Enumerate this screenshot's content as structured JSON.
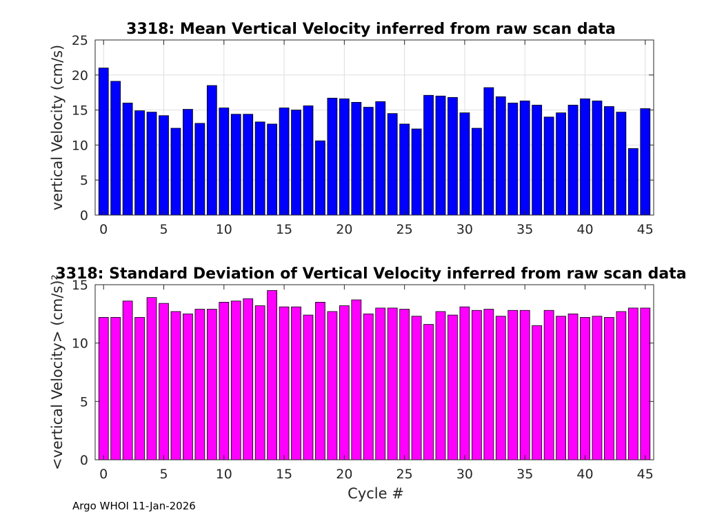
{
  "chart_data": [
    {
      "type": "bar",
      "title": "3318: Mean Vertical Velocity inferred from raw scan data",
      "xlabel": "",
      "ylabel": "vertical Velocity (cm/s)",
      "x": [
        0,
        1,
        2,
        3,
        4,
        5,
        6,
        7,
        8,
        9,
        10,
        11,
        12,
        13,
        14,
        15,
        16,
        17,
        18,
        19,
        20,
        21,
        22,
        23,
        24,
        25,
        26,
        27,
        28,
        29,
        30,
        31,
        32,
        33,
        34,
        35,
        36,
        37,
        38,
        39,
        40,
        41,
        42,
        43,
        44,
        45
      ],
      "values": [
        21.0,
        19.1,
        16.0,
        14.9,
        14.7,
        14.2,
        12.4,
        15.1,
        13.1,
        18.5,
        15.3,
        14.4,
        14.4,
        13.3,
        13.0,
        15.3,
        15.0,
        15.6,
        10.6,
        16.7,
        16.6,
        16.1,
        15.4,
        16.2,
        14.5,
        13.0,
        12.3,
        17.1,
        17.0,
        16.8,
        14.6,
        12.4,
        18.2,
        16.9,
        16.0,
        16.3,
        15.7,
        14.0,
        14.6,
        15.7,
        16.6,
        16.3,
        15.5,
        14.7,
        9.5,
        15.2
      ],
      "xlim": [
        -0.7,
        45.7
      ],
      "ylim": [
        0,
        25
      ],
      "xticks": [
        0,
        5,
        10,
        15,
        20,
        25,
        30,
        35,
        40,
        45
      ],
      "yticks": [
        0,
        5,
        10,
        15,
        20,
        25
      ],
      "grid": true,
      "color": "#0000ff"
    },
    {
      "type": "bar",
      "title": "3318: Standard Deviation of Vertical Velocity inferred from raw scan data",
      "xlabel": "Cycle #",
      "ylabel": "<vertical Velocity> (cm/s)²",
      "x": [
        0,
        1,
        2,
        3,
        4,
        5,
        6,
        7,
        8,
        9,
        10,
        11,
        12,
        13,
        14,
        15,
        16,
        17,
        18,
        19,
        20,
        21,
        22,
        23,
        24,
        25,
        26,
        27,
        28,
        29,
        30,
        31,
        32,
        33,
        34,
        35,
        36,
        37,
        38,
        39,
        40,
        41,
        42,
        43,
        44,
        45
      ],
      "values": [
        12.2,
        12.2,
        13.6,
        12.2,
        13.9,
        13.4,
        12.7,
        12.5,
        12.9,
        12.9,
        13.5,
        13.6,
        13.8,
        13.2,
        14.5,
        13.1,
        13.1,
        12.4,
        13.5,
        12.7,
        13.2,
        13.7,
        12.5,
        13.0,
        13.0,
        12.9,
        12.3,
        11.6,
        12.7,
        12.4,
        13.1,
        12.8,
        12.9,
        12.3,
        12.8,
        12.8,
        11.5,
        12.8,
        12.3,
        12.5,
        12.2,
        12.3,
        12.2,
        12.7,
        13.0,
        13.0
      ],
      "xlim": [
        -0.7,
        45.7
      ],
      "ylim": [
        0,
        15
      ],
      "xticks": [
        0,
        5,
        10,
        15,
        20,
        25,
        30,
        35,
        40,
        45
      ],
      "yticks": [
        0,
        5,
        10,
        15
      ],
      "grid": false,
      "color": "#ff00ff"
    }
  ],
  "footer": "Argo WHOI 11-Jan-2026"
}
